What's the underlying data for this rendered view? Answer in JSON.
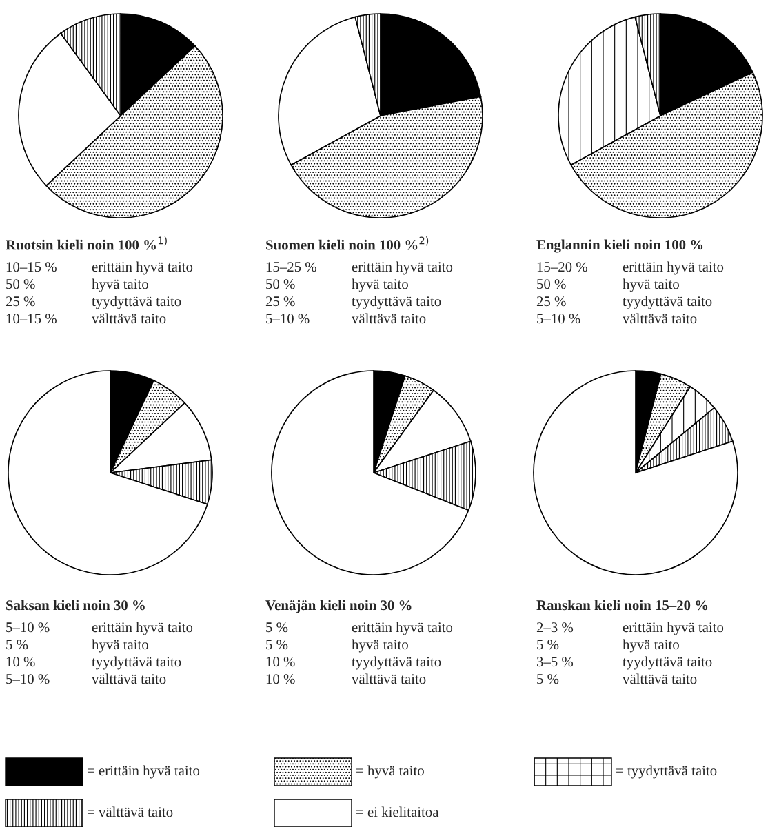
{
  "chart_data": [
    {
      "type": "pie",
      "title": "Ruotsin kieli noin 100 %$^{1)}$",
      "categories": [
        null,
        null,
        null,
        null
      ],
      "values": [
        13,
        50,
        27,
        10
      ],
      "colors": [
        "#000000",
        "#000000",
        "#ffffff",
        "#000000"
      ],
      "annotations": [
        "10–15 %",
        "erittäin hyvä taito",
        "50 %",
        "hyvä taito",
        "25 %",
        "tyydyttävä taito",
        "10–15 %",
        "välttävä taito"
      ]
    },
    {
      "type": "pie",
      "title": "Suomen kieli noin 100 %$^{2)}$",
      "categories": [
        null,
        null,
        null,
        null
      ],
      "values": [
        22,
        45,
        29,
        4
      ],
      "colors": [
        "#000000",
        "#000000",
        "#ffffff",
        "#000000"
      ],
      "annotations": [
        "15–25 %",
        "erittäin hyvä taito",
        "50 %",
        "hyvä taito",
        "25 %",
        "tyydyttävä taito",
        "5–10 %",
        "välttävä taito"
      ]
    },
    {
      "type": "pie",
      "title": "Englannin kieli noin 100 %",
      "categories": [
        null,
        null,
        null,
        null
      ],
      "values": [
        18,
        49,
        29,
        4
      ],
      "colors": [
        "#000000",
        "#000000",
        "#000000",
        "#000000"
      ],
      "annotations": [
        "15–20 %",
        "erittäin hyvä taito",
        "50 %",
        "hyvä taito",
        "25 %",
        "tyydyttävä taito",
        "5–10 %",
        "välttävä taito"
      ]
    },
    {
      "type": "pie",
      "title": "Saksan kieli noin 30 %",
      "categories": [
        null,
        null,
        null,
        null,
        null
      ],
      "values": [
        7,
        6,
        10,
        7,
        70
      ],
      "colors": [
        "#000000",
        "#000000",
        "#ffffff",
        "#000000",
        "#ffffff"
      ],
      "annotations": [
        "5–10 %",
        "erittäin hyvä taito",
        "5 %",
        "hyvä taito",
        "10 %",
        "tyydyttävä taito",
        "5–10 %",
        "välttävä taito"
      ]
    },
    {
      "type": "pie",
      "title": "Venäjän kieli noin 30 %",
      "categories": [
        null,
        null,
        null,
        null,
        null
      ],
      "values": [
        5,
        5,
        10,
        11,
        69
      ],
      "colors": [
        "#000000",
        "#000000",
        "#ffffff",
        "#000000",
        "#ffffff"
      ],
      "annotations": [
        "5 %",
        "erittäin hyvä taito",
        "5 %",
        "hyvä taito",
        "10 %",
        "tyydyttävä taito",
        "10 %",
        "välttävä taito"
      ]
    },
    {
      "type": "pie",
      "title": "Ranskan kieli noin 15–20 %",
      "categories": [
        null,
        null,
        null,
        null,
        null
      ],
      "values": [
        4,
        5,
        5,
        6,
        80
      ],
      "colors": [
        "#000000",
        "#000000",
        "#000000",
        "#000000",
        "#ffffff"
      ],
      "annotations": [
        "2–3 %",
        "erittäin hyvä taito",
        "5 %",
        "hyvä taito",
        "3–5 %",
        "tyydyttävä taito",
        "5 %",
        "välttävä taito"
      ]
    },
    {
      "type": "other",
      "annotations": [
        "= erittäin hyvä taito",
        "= hyvä taito",
        "= tyydyttävä taito",
        "= välttävä taito",
        "= ei kielitaitoa"
      ]
    }
  ]
}
